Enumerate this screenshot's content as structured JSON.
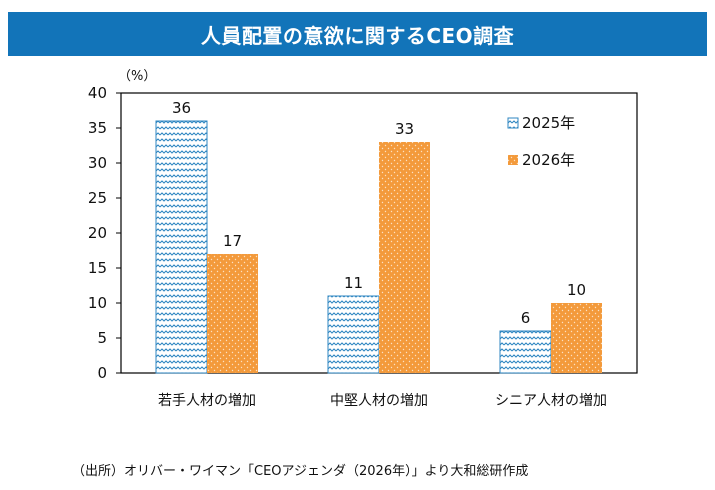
{
  "title": "人員配置の意欲に関するCEO調査",
  "source": "（出所）オリバー・ワイマン「CEOアジェンダ（2026年）」より大和総研作成",
  "chart_data": {
    "type": "bar",
    "unit_label": "（%）",
    "categories": [
      "若手人材の増加",
      "中堅人材の増加",
      "シニア人材の増加"
    ],
    "series": [
      {
        "name": "2025年",
        "values": [
          36,
          11,
          6
        ],
        "color": "#2e86c1",
        "pattern": "wave"
      },
      {
        "name": "2026年",
        "values": [
          17,
          33,
          10
        ],
        "color": "#f39a3b",
        "pattern": "dots"
      }
    ],
    "ylim": [
      0,
      40
    ],
    "yticks": [
      0,
      5,
      10,
      15,
      20,
      25,
      30,
      35,
      40
    ],
    "legend_position": "top-right",
    "grid": false,
    "data_labels": true
  }
}
